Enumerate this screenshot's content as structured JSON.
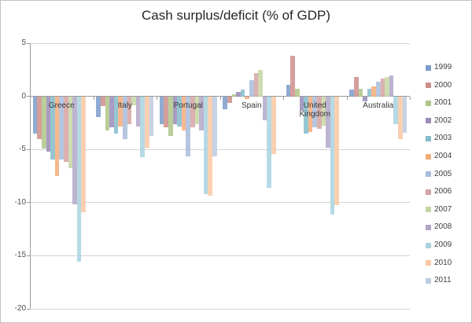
{
  "chart_data": {
    "type": "bar",
    "title": "Cash surplus/deficit (% of GDP)",
    "categories": [
      "Greece",
      "Italy",
      "Portugal",
      "Spain",
      "United Kingdom",
      "Australia"
    ],
    "y_axis": {
      "ticks": [
        5,
        0,
        -5,
        -10,
        -15,
        -20
      ],
      "range": [
        -20,
        5
      ],
      "gridlines": true
    },
    "legend_position": "right",
    "series": [
      {
        "name": "1999",
        "color": "#7D9CC9",
        "values": [
          -3.5,
          -1.9,
          -2.6,
          -1.2,
          1.1,
          0.6
        ]
      },
      {
        "name": "2000",
        "color": "#CC8E8B",
        "values": [
          -4.0,
          -0.9,
          -2.9,
          -0.6,
          3.8,
          1.8
        ]
      },
      {
        "name": "2001",
        "color": "#AEC687",
        "values": [
          -4.9,
          -3.2,
          -3.7,
          0.2,
          0.7,
          0.7
        ]
      },
      {
        "name": "2002",
        "color": "#9A8BB8",
        "values": [
          -5.2,
          -2.9,
          -2.6,
          0.4,
          -1.3,
          -0.4
        ]
      },
      {
        "name": "2003",
        "color": "#85BCCB",
        "values": [
          -5.9,
          -3.5,
          -2.8,
          0.6,
          -3.5,
          0.7
        ]
      },
      {
        "name": "2004",
        "color": "#F4AC79",
        "values": [
          -7.5,
          -2.8,
          -3.2,
          -0.2,
          -3.3,
          0.9
        ]
      },
      {
        "name": "2005",
        "color": "#A9BCDB",
        "values": [
          -5.9,
          -4.0,
          -5.6,
          1.5,
          -2.9,
          1.4
        ]
      },
      {
        "name": "2006",
        "color": "#D5A3A1",
        "values": [
          -6.1,
          -2.6,
          -2.9,
          2.2,
          -3.0,
          1.7
        ]
      },
      {
        "name": "2007",
        "color": "#C5D6A2",
        "values": [
          -6.7,
          -0.8,
          -2.6,
          2.5,
          -2.7,
          1.8
        ]
      },
      {
        "name": "2008",
        "color": "#B3A6C9",
        "values": [
          -10.1,
          -2.8,
          -3.2,
          -2.2,
          -4.8,
          2.0
        ]
      },
      {
        "name": "2009",
        "color": "#A8D3DF",
        "values": [
          -15.5,
          -5.7,
          -9.2,
          -8.6,
          -11.1,
          -2.6
        ]
      },
      {
        "name": "2010",
        "color": "#F8C8A4",
        "values": [
          -10.9,
          -4.8,
          -9.3,
          -5.4,
          -10.2,
          -4.0
        ]
      },
      {
        "name": "2011",
        "color": "#BCCBE2",
        "values": [
          null,
          -3.7,
          -5.6,
          null,
          null,
          -3.4
        ]
      }
    ]
  }
}
